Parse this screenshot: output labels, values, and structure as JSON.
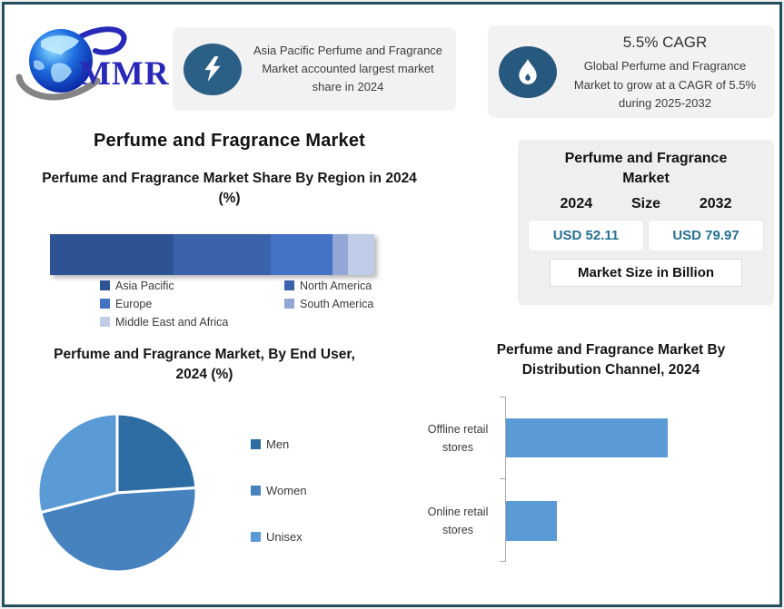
{
  "brand": {
    "logo_text": "MMR"
  },
  "header_cards": {
    "share_card": {
      "icon": "lightning",
      "text": "Asia Pacific Perfume and Fragrance Market accounted largest market share in 2024"
    },
    "cagr_card": {
      "icon": "flame",
      "title": "5.5% CAGR",
      "text": "Global Perfume and Fragrance Market to grow at a CAGR of 5.5% during 2025-2032"
    }
  },
  "main_title": "Perfume and Fragrance Market",
  "market_size_panel": {
    "title": "Perfume and Fragrance Market",
    "year_left": "2024",
    "size_label": "Size",
    "year_right": "2032",
    "value_left": "USD 52.11",
    "value_right": "USD 79.97",
    "unit_label": "Market Size in Billion",
    "value_color": "#26718F"
  },
  "colors": {
    "accent_dark_teal_border": "#254F60",
    "icon_circle_blue": "#2C5F86",
    "card_background": "#F2F2F2",
    "panel_background": "#EFEFEF",
    "primary_bar_blue": "#5B9BD5"
  },
  "chart_data": [
    {
      "id": "region_share",
      "type": "bar",
      "subtype": "stacked-horizontal-single-bar",
      "title": "Perfume and Fragrance Market Share By Region in 2024 (%)",
      "categories": [
        "Asia Pacific",
        "North America",
        "Europe",
        "South America",
        "Middle East and Africa"
      ],
      "values": [
        38,
        30,
        19,
        5,
        8
      ],
      "value_unit": "%",
      "colors": [
        "#2E5395",
        "#3B63AC",
        "#4472C4",
        "#93A7D6",
        "#C1CCE9"
      ],
      "legend_position": "bottom",
      "grid": false,
      "axis_labels_visible": false
    },
    {
      "id": "end_user",
      "type": "pie",
      "title": "Perfume and Fragrance Market, By End User, 2024 (%)",
      "categories": [
        "Men",
        "Women",
        "Unisex"
      ],
      "values": [
        24,
        47,
        29
      ],
      "value_unit": "%",
      "colors": [
        "#2E6DA4",
        "#4682BE",
        "#5B9BD5"
      ],
      "legend_position": "right",
      "start_angle_deg": 0,
      "direction": "clockwise",
      "slice_gap_color": "#FFFFFF"
    },
    {
      "id": "distribution_channel",
      "type": "bar",
      "subtype": "horizontal",
      "title": "Perfume and Fragrance Market By Distribution Channel, 2024",
      "categories": [
        "Offline retail stores",
        "Online retail stores"
      ],
      "values": [
        76,
        24
      ],
      "value_unit": "%",
      "bar_color": "#5B9BD5",
      "xlim": [
        0,
        100
      ],
      "grid": false,
      "legend_position": "none"
    }
  ]
}
